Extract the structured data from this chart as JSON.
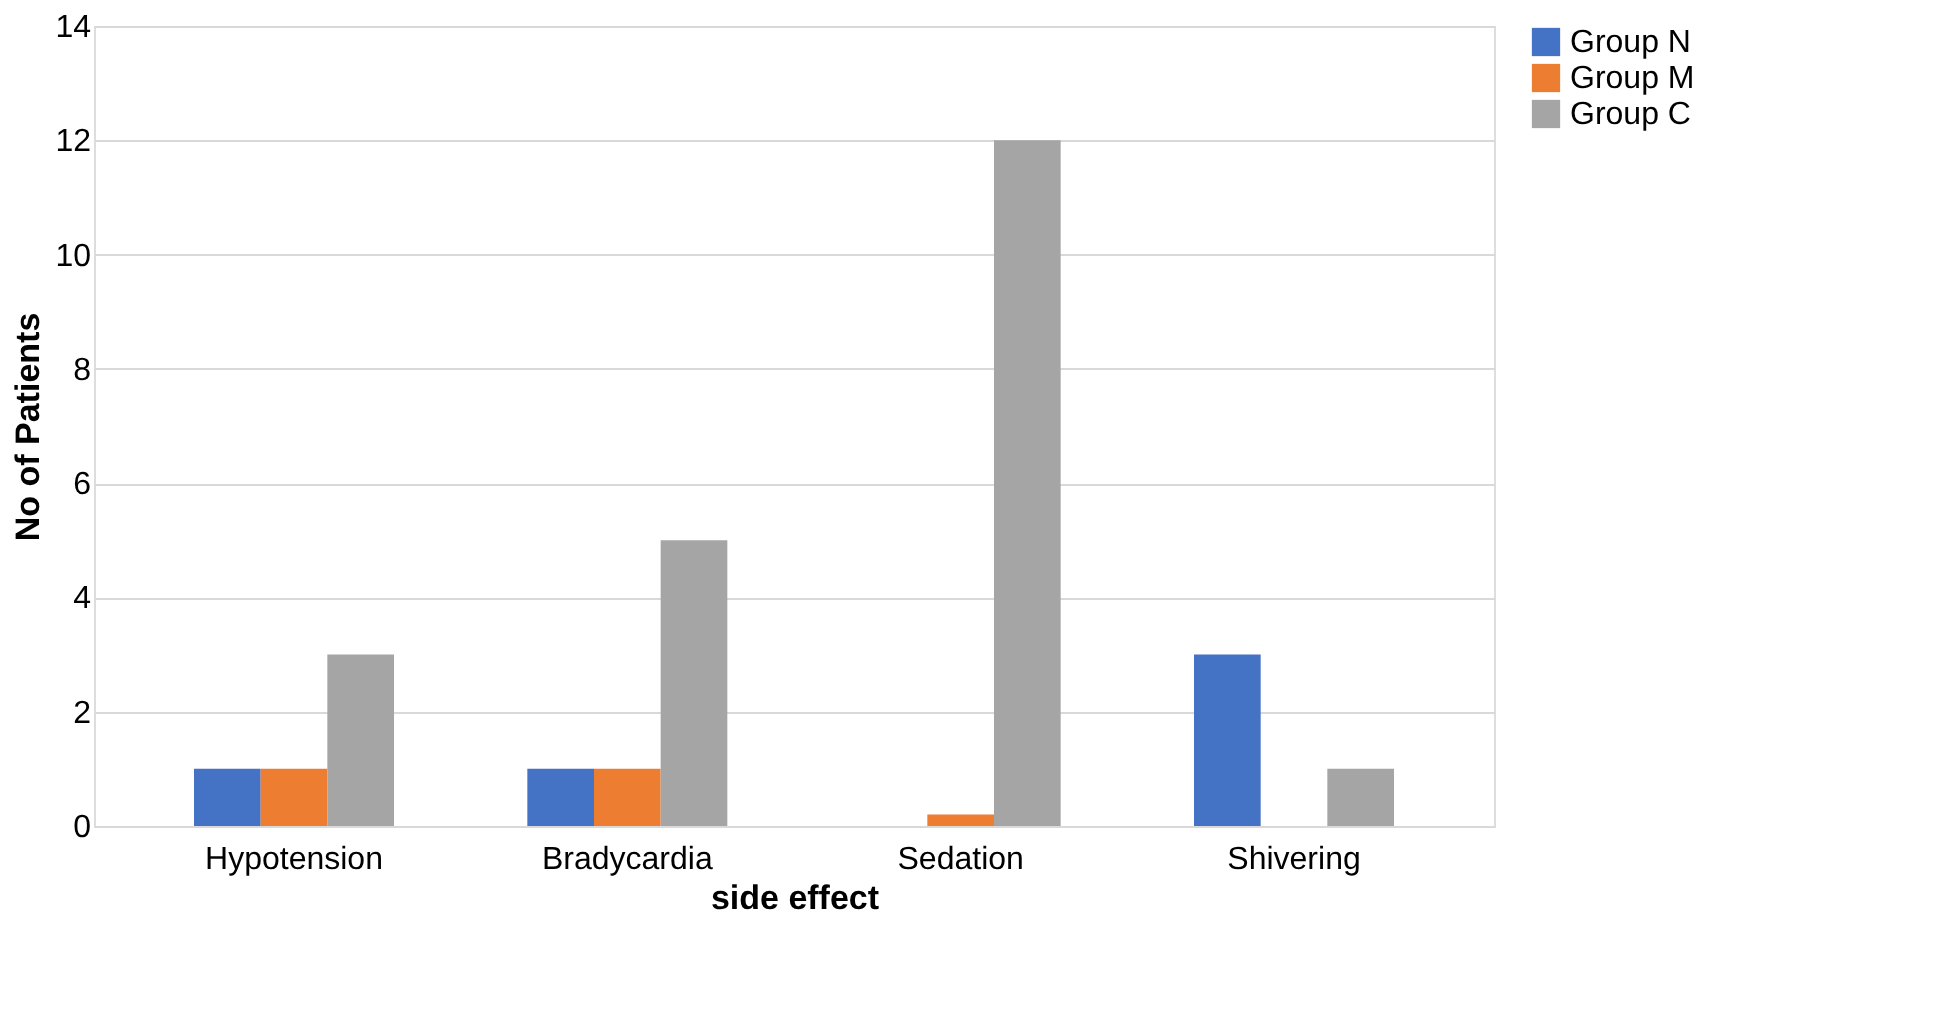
{
  "chart_data": {
    "type": "bar",
    "xlabel": "side effect",
    "ylabel": "No of Patients",
    "categories": [
      "Hypotension",
      "Bradycardia",
      "Sedation",
      "Shivering"
    ],
    "series": [
      {
        "name": "Group N",
        "color": "#4472c4",
        "values": [
          1,
          1,
          0,
          3
        ]
      },
      {
        "name": "Group M",
        "color": "#ed7d31",
        "values": [
          1,
          1,
          0.2,
          0
        ]
      },
      {
        "name": "Group C",
        "color": "#a5a5a5",
        "values": [
          3,
          5,
          12,
          1
        ]
      }
    ],
    "ylim": [
      0,
      14
    ],
    "yticks": [
      0,
      2,
      4,
      6,
      8,
      10,
      12,
      14
    ],
    "grid": "y",
    "legend": "right"
  }
}
